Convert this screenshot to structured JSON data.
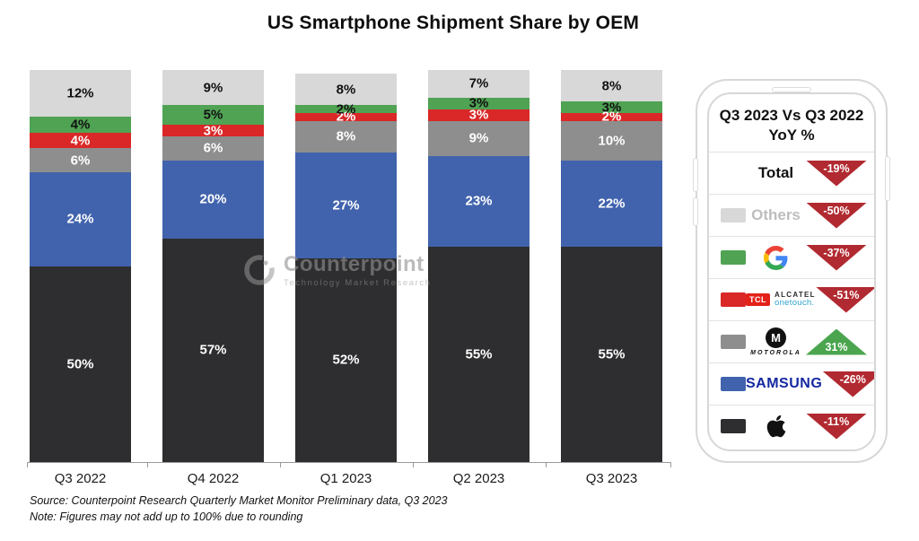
{
  "title": "US Smartphone Shipment Share by OEM",
  "watermark": {
    "name": "Counterpoint",
    "subtitle": "Technology Market Research"
  },
  "footer": {
    "source": "Source: Counterpoint Research Quarterly Market Monitor Preliminary data, Q3 2023",
    "note": "Note: Figures may not add up to 100% due to rounding"
  },
  "colors": {
    "apple": "#2e2e30",
    "samsung": "#4163ad",
    "motorola": "#8e8e8e",
    "tcl": "#da2727",
    "google": "#4fa353",
    "others": "#d8d8d8",
    "triangle_down": "#b12a31",
    "triangle_up": "#4aa54e",
    "samsung_wordmark": "#1428a0",
    "tcl_logo_red": "#e32219"
  },
  "chart_data": {
    "type": "bar",
    "stacked": true,
    "title": "US Smartphone Shipment Share by OEM",
    "categories": [
      "Q3 2022",
      "Q4 2022",
      "Q1 2023",
      "Q2 2023",
      "Q3 2023"
    ],
    "series": [
      {
        "name": "Apple",
        "key": "apple",
        "values": [
          50,
          57,
          52,
          55,
          55
        ],
        "label_color": "#ffffff"
      },
      {
        "name": "Samsung",
        "key": "samsung",
        "values": [
          24,
          20,
          27,
          23,
          22
        ],
        "label_color": "#ffffff"
      },
      {
        "name": "Motorola",
        "key": "motorola",
        "values": [
          6,
          6,
          8,
          9,
          10
        ],
        "label_color": "#ffffff"
      },
      {
        "name": "TCL-Alcatel",
        "key": "tcl",
        "values": [
          4,
          3,
          2,
          3,
          2
        ],
        "label_color": "#ffffff"
      },
      {
        "name": "Google",
        "key": "google",
        "values": [
          4,
          5,
          2,
          3,
          3
        ],
        "label_color": "#111111"
      },
      {
        "name": "Others",
        "key": "others",
        "values": [
          12,
          9,
          8,
          7,
          8
        ],
        "label_color": "#111111"
      }
    ],
    "value_suffix": "%",
    "ylim": [
      0,
      100
    ],
    "grid": false,
    "legend_position": "right-panel"
  },
  "panel": {
    "title_line1": "Q3 2023 Vs Q3 2022",
    "title_line2": "YoY %",
    "rows": [
      {
        "brand": "total",
        "label": "Total",
        "change": "-19%",
        "direction": "down"
      },
      {
        "brand": "others",
        "label": "Others",
        "change": "-50%",
        "direction": "down"
      },
      {
        "brand": "google",
        "change": "-37%",
        "direction": "down"
      },
      {
        "brand": "tcl-alcatel",
        "change": "-51%",
        "direction": "down"
      },
      {
        "brand": "motorola",
        "change": "31%",
        "direction": "up"
      },
      {
        "brand": "samsung",
        "change": "-26%",
        "direction": "down"
      },
      {
        "brand": "apple",
        "change": "-11%",
        "direction": "down"
      }
    ],
    "logos": {
      "tcl_box": "TCL",
      "alcatel": "ALCATEL",
      "onetouch": "onetouch.",
      "motorola_m": "M",
      "motorola": "MOTOROLA",
      "samsung": "SAMSUNG"
    }
  }
}
